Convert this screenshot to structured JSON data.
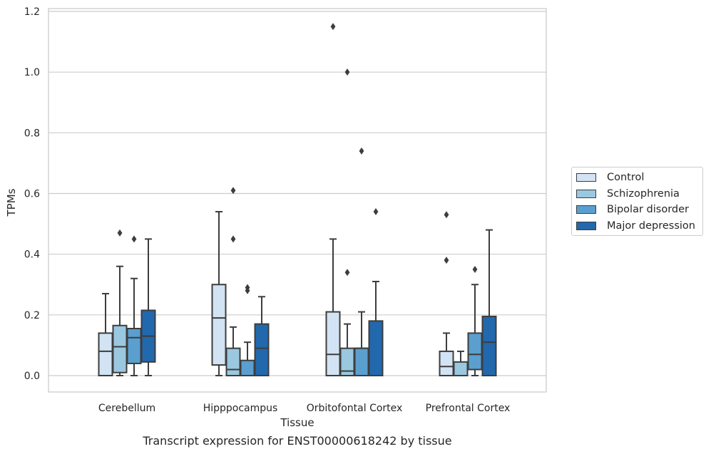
{
  "chart_data": {
    "type": "boxplot",
    "caption": "Transcript expression for ENST00000618242 by tissue",
    "xlabel": "Tissue",
    "ylabel": "TPMs",
    "ylim": [
      -0.055,
      1.21
    ],
    "yticks": [
      "0.0",
      "0.2",
      "0.4",
      "0.6",
      "0.8",
      "1.0",
      "1.2"
    ],
    "grid": true,
    "legend_position": "right",
    "categories": [
      "Cerebellum",
      "Hipppocampus",
      "Orbitofontal Cortex",
      "Prefrontal Cortex"
    ],
    "series": [
      {
        "name": "Control",
        "color": "#d2e3f3",
        "boxes": [
          {
            "whislo": 0.0,
            "q1": 0.0,
            "med": 0.08,
            "q3": 0.14,
            "whishi": 0.27,
            "fliers": []
          },
          {
            "whislo": 0.0,
            "q1": 0.035,
            "med": 0.19,
            "q3": 0.3,
            "whishi": 0.54,
            "fliers": []
          },
          {
            "whislo": 0.0,
            "q1": 0.0,
            "med": 0.07,
            "q3": 0.21,
            "whishi": 0.45,
            "fliers": [
              1.15
            ]
          },
          {
            "whislo": 0.0,
            "q1": 0.0,
            "med": 0.03,
            "q3": 0.08,
            "whishi": 0.14,
            "fliers": [
              0.38,
              0.53
            ]
          }
        ]
      },
      {
        "name": "Schizophrenia",
        "color": "#9ac8e0",
        "boxes": [
          {
            "whislo": 0.0,
            "q1": 0.01,
            "med": 0.095,
            "q3": 0.165,
            "whishi": 0.36,
            "fliers": [
              0.47
            ]
          },
          {
            "whislo": 0.0,
            "q1": 0.0,
            "med": 0.02,
            "q3": 0.09,
            "whishi": 0.16,
            "fliers": [
              0.45,
              0.61
            ]
          },
          {
            "whislo": 0.0,
            "q1": 0.0,
            "med": 0.015,
            "q3": 0.09,
            "whishi": 0.17,
            "fliers": [
              0.34,
              1.0
            ]
          },
          {
            "whislo": 0.0,
            "q1": 0.0,
            "med": 0.0,
            "q3": 0.045,
            "whishi": 0.08,
            "fliers": []
          }
        ]
      },
      {
        "name": "Bipolar disorder",
        "color": "#5a9fcf",
        "boxes": [
          {
            "whislo": 0.0,
            "q1": 0.04,
            "med": 0.125,
            "q3": 0.155,
            "whishi": 0.32,
            "fliers": [
              0.45
            ]
          },
          {
            "whislo": 0.0,
            "q1": 0.0,
            "med": 0.0,
            "q3": 0.05,
            "whishi": 0.11,
            "fliers": [
              0.28,
              0.29
            ]
          },
          {
            "whislo": 0.0,
            "q1": 0.0,
            "med": 0.09,
            "q3": 0.09,
            "whishi": 0.21,
            "fliers": [
              0.74
            ]
          },
          {
            "whislo": 0.0,
            "q1": 0.02,
            "med": 0.07,
            "q3": 0.14,
            "whishi": 0.3,
            "fliers": [
              0.35
            ]
          }
        ]
      },
      {
        "name": "Major depression",
        "color": "#2268ad",
        "boxes": [
          {
            "whislo": 0.0,
            "q1": 0.045,
            "med": 0.13,
            "q3": 0.215,
            "whishi": 0.45,
            "fliers": []
          },
          {
            "whislo": 0.0,
            "q1": 0.0,
            "med": 0.09,
            "q3": 0.17,
            "whishi": 0.26,
            "fliers": []
          },
          {
            "whislo": 0.0,
            "q1": 0.0,
            "med": 0.0,
            "q3": 0.18,
            "whishi": 0.31,
            "fliers": [
              0.54
            ]
          },
          {
            "whislo": 0.0,
            "q1": 0.0,
            "med": 0.11,
            "q3": 0.195,
            "whishi": 0.48,
            "fliers": []
          }
        ]
      }
    ]
  }
}
